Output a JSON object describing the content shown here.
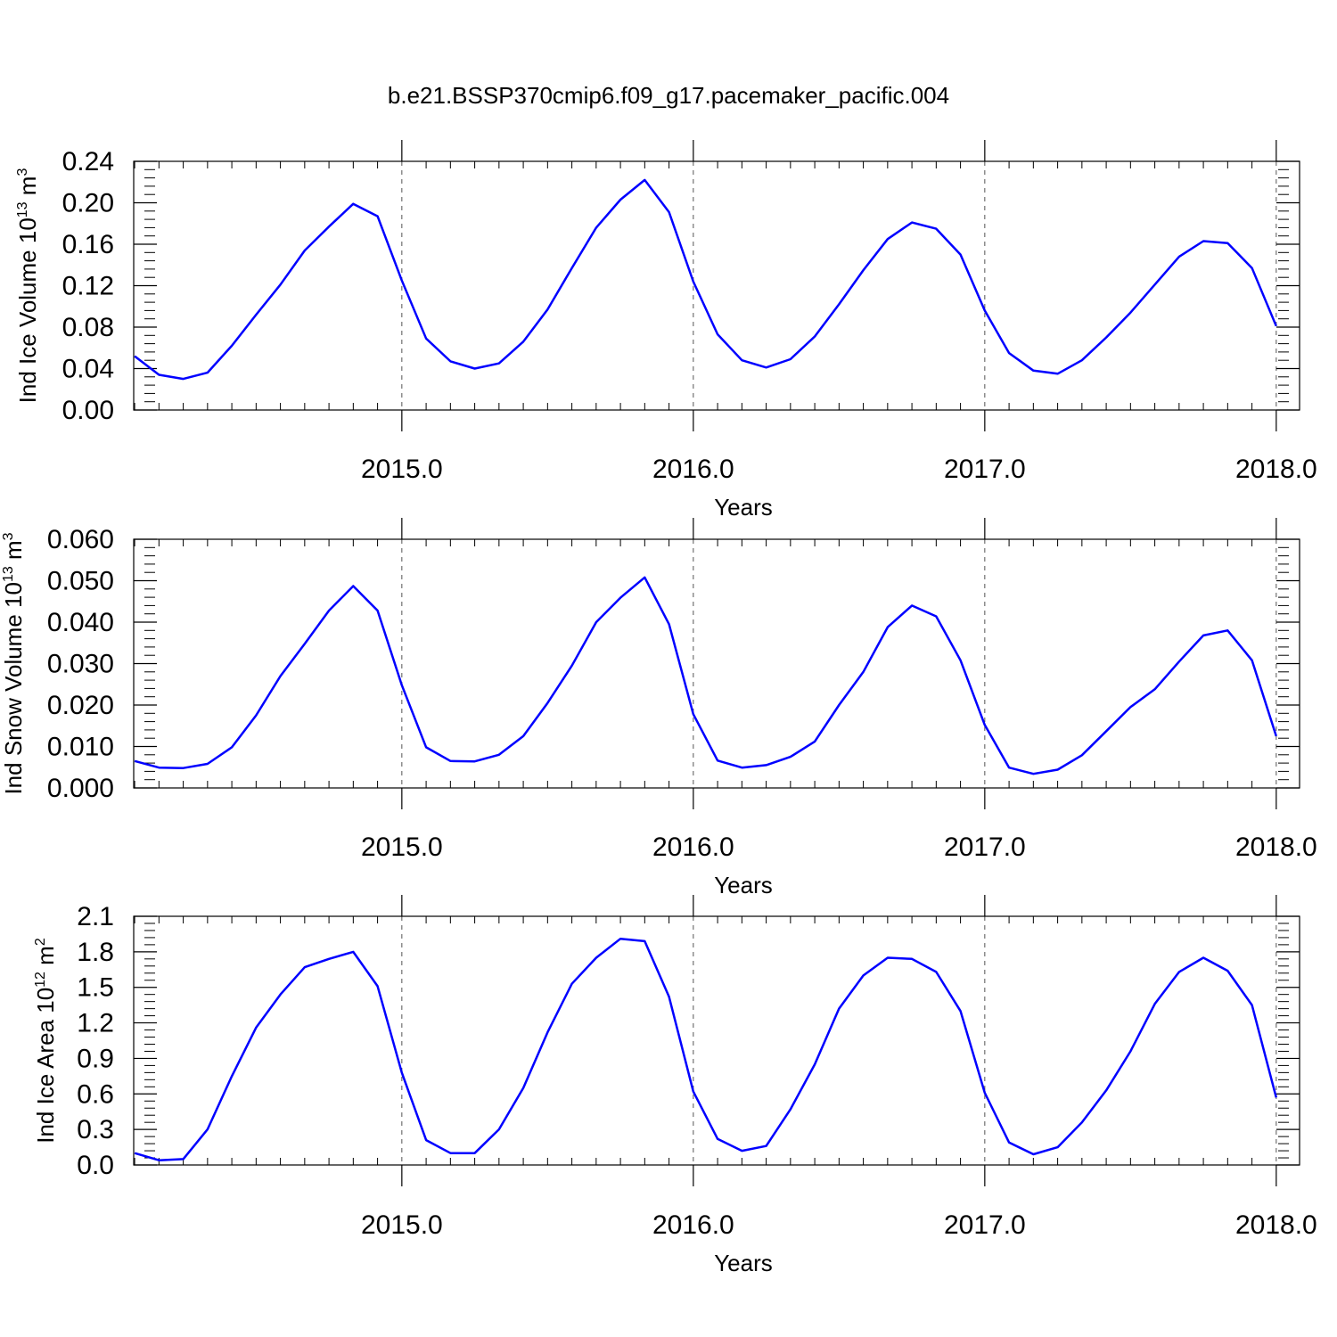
{
  "title": "b.e21.BSSP370cmip6.f09_g17.pacemaker_pacific.004",
  "line_color": "#0000ff",
  "chart_data": [
    {
      "type": "line",
      "xlabel": "Years",
      "ylabel": "Ind Ice Volume",
      "yunit_base": "10",
      "yunit_exp": "13",
      "yunit_tail": "m",
      "yunit_tail_exp": "3",
      "xlim": [
        2014.08,
        2018.08
      ],
      "ylim": [
        0.0,
        0.24
      ],
      "xticks": [
        2015.0,
        2016.0,
        2017.0,
        2018.0
      ],
      "xtick_labels": [
        "2015.0",
        "2016.0",
        "2017.0",
        "2018.0"
      ],
      "yticks": [
        0.0,
        0.04,
        0.08,
        0.12,
        0.16,
        0.2,
        0.24
      ],
      "ytick_labels": [
        "0.00",
        "0.04",
        "0.08",
        "0.12",
        "0.16",
        "0.20",
        "0.24"
      ],
      "grid": "vertical dashed at year marks",
      "series": [
        {
          "x": [
            2014.0833,
            2014.1667,
            2014.25,
            2014.3333,
            2014.4167,
            2014.5,
            2014.5833,
            2014.6667,
            2014.75,
            2014.8333,
            2014.9167,
            2015.0,
            2015.0833,
            2015.1667,
            2015.25,
            2015.3333,
            2015.4167,
            2015.5,
            2015.5833,
            2015.6667,
            2015.75,
            2015.8333,
            2015.9167,
            2016.0,
            2016.0833,
            2016.1667,
            2016.25,
            2016.3333,
            2016.4167,
            2016.5,
            2016.5833,
            2016.6667,
            2016.75,
            2016.8333,
            2016.9167,
            2017.0,
            2017.0833,
            2017.1667,
            2017.25,
            2017.3333,
            2017.4167,
            2017.5,
            2017.5833,
            2017.6667,
            2017.75,
            2017.8333,
            2017.9167,
            2018.0
          ],
          "values": [
            0.052,
            0.034,
            0.03,
            0.036,
            0.062,
            0.092,
            0.121,
            0.154,
            0.177,
            0.199,
            0.187,
            0.125,
            0.069,
            0.047,
            0.04,
            0.045,
            0.066,
            0.097,
            0.137,
            0.176,
            0.203,
            0.222,
            0.191,
            0.124,
            0.073,
            0.048,
            0.041,
            0.049,
            0.071,
            0.102,
            0.135,
            0.165,
            0.181,
            0.175,
            0.15,
            0.096,
            0.055,
            0.038,
            0.035,
            0.048,
            0.07,
            0.094,
            0.121,
            0.148,
            0.163,
            0.161,
            0.137,
            0.081
          ]
        }
      ]
    },
    {
      "type": "line",
      "xlabel": "Years",
      "ylabel": "Ind Snow Volume",
      "yunit_base": "10",
      "yunit_exp": "13",
      "yunit_tail": "m",
      "yunit_tail_exp": "3",
      "xlim": [
        2014.08,
        2018.08
      ],
      "ylim": [
        0.0,
        0.06
      ],
      "xticks": [
        2015.0,
        2016.0,
        2017.0,
        2018.0
      ],
      "xtick_labels": [
        "2015.0",
        "2016.0",
        "2017.0",
        "2018.0"
      ],
      "yticks": [
        0.0,
        0.01,
        0.02,
        0.03,
        0.04,
        0.05,
        0.06
      ],
      "ytick_labels": [
        "0.000",
        "0.010",
        "0.020",
        "0.030",
        "0.040",
        "0.050",
        "0.060"
      ],
      "grid": "vertical dashed at year marks",
      "series": [
        {
          "x": [
            2014.0833,
            2014.1667,
            2014.25,
            2014.3333,
            2014.4167,
            2014.5,
            2014.5833,
            2014.6667,
            2014.75,
            2014.8333,
            2014.9167,
            2015.0,
            2015.0833,
            2015.1667,
            2015.25,
            2015.3333,
            2015.4167,
            2015.5,
            2015.5833,
            2015.6667,
            2015.75,
            2015.8333,
            2015.9167,
            2016.0,
            2016.0833,
            2016.1667,
            2016.25,
            2016.3333,
            2016.4167,
            2016.5,
            2016.5833,
            2016.6667,
            2016.75,
            2016.8333,
            2016.9167,
            2017.0,
            2017.0833,
            2017.1667,
            2017.25,
            2017.3333,
            2017.4167,
            2017.5,
            2017.5833,
            2017.6667,
            2017.75,
            2017.8333,
            2017.9167,
            2018.0
          ],
          "values": [
            0.0065,
            0.0049,
            0.0048,
            0.0058,
            0.0098,
            0.0175,
            0.027,
            0.0348,
            0.0428,
            0.0487,
            0.0428,
            0.0248,
            0.0098,
            0.0065,
            0.0064,
            0.008,
            0.0125,
            0.0205,
            0.0295,
            0.04,
            0.0459,
            0.0508,
            0.0395,
            0.0178,
            0.0066,
            0.0049,
            0.0055,
            0.0075,
            0.0112,
            0.02,
            0.028,
            0.0388,
            0.044,
            0.0414,
            0.0308,
            0.0152,
            0.0049,
            0.0034,
            0.0044,
            0.0079,
            0.0137,
            0.0195,
            0.0238,
            0.0305,
            0.0368,
            0.038,
            0.0308,
            0.0125
          ]
        }
      ]
    },
    {
      "type": "line",
      "xlabel": "Years",
      "ylabel": "Ind Ice Area",
      "yunit_base": "10",
      "yunit_exp": "12",
      "yunit_tail": "m",
      "yunit_tail_exp": "2",
      "xlim": [
        2014.08,
        2018.08
      ],
      "ylim": [
        0.0,
        2.1
      ],
      "xticks": [
        2015.0,
        2016.0,
        2017.0,
        2018.0
      ],
      "xtick_labels": [
        "2015.0",
        "2016.0",
        "2017.0",
        "2018.0"
      ],
      "yticks": [
        0.0,
        0.3,
        0.6,
        0.9,
        1.2,
        1.5,
        1.8,
        2.1
      ],
      "ytick_labels": [
        "0.0",
        "0.3",
        "0.6",
        "0.9",
        "1.2",
        "1.5",
        "1.8",
        "2.1"
      ],
      "grid": "vertical dashed at year marks",
      "series": [
        {
          "x": [
            2014.0833,
            2014.1667,
            2014.25,
            2014.3333,
            2014.4167,
            2014.5,
            2014.5833,
            2014.6667,
            2014.75,
            2014.8333,
            2014.9167,
            2015.0,
            2015.0833,
            2015.1667,
            2015.25,
            2015.3333,
            2015.4167,
            2015.5,
            2015.5833,
            2015.6667,
            2015.75,
            2015.8333,
            2015.9167,
            2016.0,
            2016.0833,
            2016.1667,
            2016.25,
            2016.3333,
            2016.4167,
            2016.5,
            2016.5833,
            2016.6667,
            2016.75,
            2016.8333,
            2016.9167,
            2017.0,
            2017.0833,
            2017.1667,
            2017.25,
            2017.3333,
            2017.4167,
            2017.5,
            2017.5833,
            2017.6667,
            2017.75,
            2017.8333,
            2017.9167,
            2018.0
          ],
          "values": [
            0.1,
            0.04,
            0.05,
            0.3,
            0.75,
            1.16,
            1.44,
            1.67,
            1.74,
            1.8,
            1.51,
            0.78,
            0.21,
            0.1,
            0.1,
            0.3,
            0.65,
            1.12,
            1.53,
            1.75,
            1.91,
            1.89,
            1.42,
            0.62,
            0.22,
            0.12,
            0.16,
            0.47,
            0.85,
            1.32,
            1.6,
            1.75,
            1.74,
            1.63,
            1.3,
            0.61,
            0.19,
            0.09,
            0.15,
            0.36,
            0.63,
            0.96,
            1.36,
            1.63,
            1.75,
            1.64,
            1.35,
            0.57
          ]
        }
      ]
    }
  ]
}
